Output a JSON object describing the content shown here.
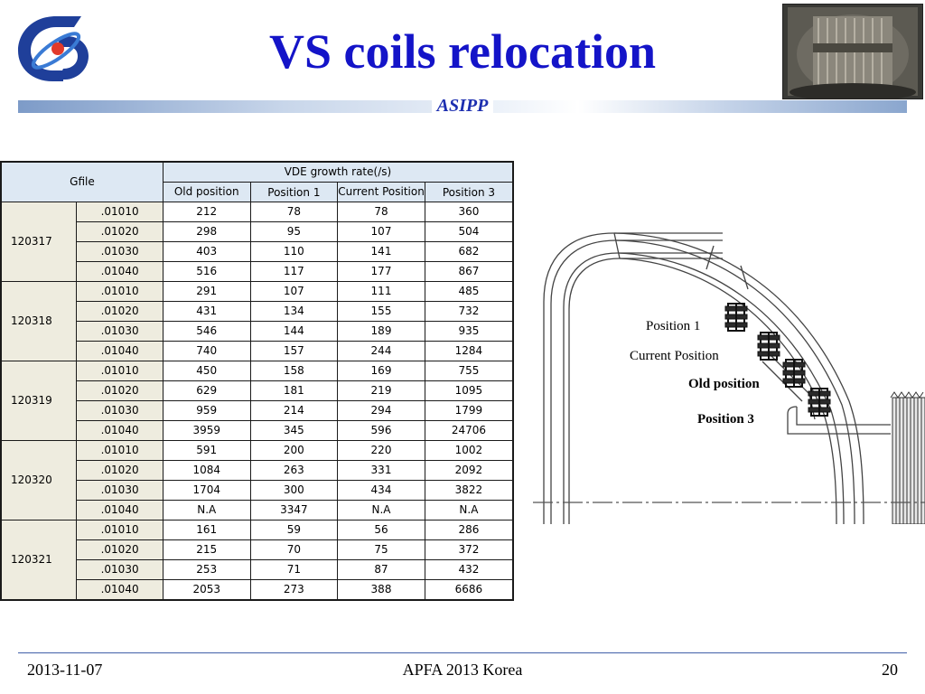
{
  "slide": {
    "title": "VS coils relocation",
    "organization": "ASIPP"
  },
  "table": {
    "corner_header": "Gfile",
    "group_header": "VDE growth rate(/s)",
    "columns": [
      "Old position",
      "Position 1",
      "Current Position",
      "Position 3"
    ],
    "groups": [
      {
        "gfile": "120317",
        "rows": [
          {
            "slice": ".01010",
            "values": [
              "212",
              "78",
              "78",
              "360"
            ]
          },
          {
            "slice": ".01020",
            "values": [
              "298",
              "95",
              "107",
              "504"
            ]
          },
          {
            "slice": ".01030",
            "values": [
              "403",
              "110",
              "141",
              "682"
            ]
          },
          {
            "slice": ".01040",
            "values": [
              "516",
              "117",
              "177",
              "867"
            ]
          }
        ]
      },
      {
        "gfile": "120318",
        "rows": [
          {
            "slice": ".01010",
            "values": [
              "291",
              "107",
              "111",
              "485"
            ]
          },
          {
            "slice": ".01020",
            "values": [
              "431",
              "134",
              "155",
              "732"
            ]
          },
          {
            "slice": ".01030",
            "values": [
              "546",
              "144",
              "189",
              "935"
            ]
          },
          {
            "slice": ".01040",
            "values": [
              "740",
              "157",
              "244",
              "1284"
            ]
          }
        ]
      },
      {
        "gfile": "120319",
        "rows": [
          {
            "slice": ".01010",
            "values": [
              "450",
              "158",
              "169",
              "755"
            ]
          },
          {
            "slice": ".01020",
            "values": [
              "629",
              "181",
              "219",
              "1095"
            ]
          },
          {
            "slice": ".01030",
            "values": [
              "959",
              "214",
              "294",
              "1799"
            ]
          },
          {
            "slice": ".01040",
            "values": [
              "3959",
              "345",
              "596",
              "24706"
            ]
          }
        ]
      },
      {
        "gfile": "120320",
        "rows": [
          {
            "slice": ".01010",
            "values": [
              "591",
              "200",
              "220",
              "1002"
            ]
          },
          {
            "slice": ".01020",
            "values": [
              "1084",
              "263",
              "331",
              "2092"
            ]
          },
          {
            "slice": ".01030",
            "values": [
              "1704",
              "300",
              "434",
              "3822"
            ]
          },
          {
            "slice": ".01040",
            "values": [
              "N.A",
              "3347",
              "N.A",
              "N.A"
            ]
          }
        ]
      },
      {
        "gfile": "120321",
        "rows": [
          {
            "slice": ".01010",
            "values": [
              "161",
              "59",
              "56",
              "286"
            ]
          },
          {
            "slice": ".01020",
            "values": [
              "215",
              "70",
              "75",
              "372"
            ]
          },
          {
            "slice": ".01030",
            "values": [
              "253",
              "71",
              "87",
              "432"
            ]
          },
          {
            "slice": ".01040",
            "values": [
              "2053",
              "273",
              "388",
              "6686"
            ]
          }
        ]
      }
    ]
  },
  "diagram": {
    "labels": {
      "position1": "Position 1",
      "current": "Current Position",
      "old": "Old position",
      "position3": "Position 3"
    }
  },
  "footer": {
    "date": "2013-11-07",
    "conference": "APFA 2013 Korea",
    "page": "20"
  },
  "colors": {
    "title": "#1414c8",
    "organization": "#1d2fb0",
    "header_cell": "#dde8f3",
    "group_cell": "#eeecdf"
  }
}
